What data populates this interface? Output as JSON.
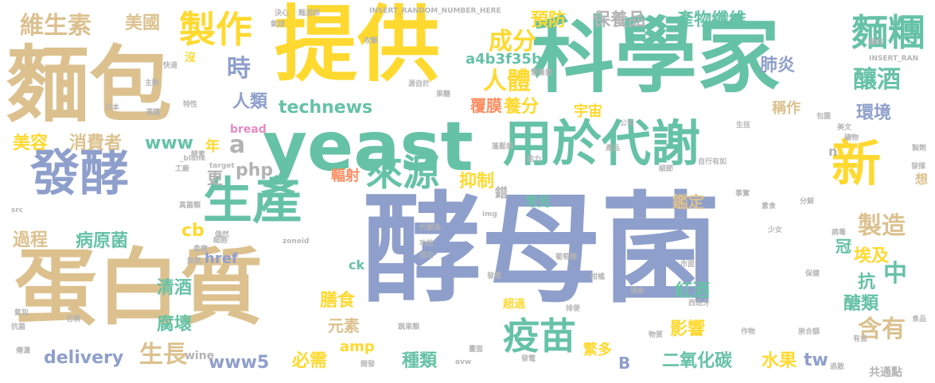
{
  "colors": {
    "blue": "#8f9fcc",
    "tan": "#dcc18f",
    "green": "#66c2a5",
    "yellow": "#ffd92f",
    "orange": "#fc8d62",
    "gray": "#b3b3b3",
    "pink": "#e78ac3",
    "lime": "#a6d854",
    "gold": "#e5c494"
  },
  "words": [
    {
      "text": "酵母菌",
      "color": "#8f9fcc"
    },
    {
      "text": "麵包",
      "color": "#dcc18f"
    },
    {
      "text": "提供",
      "color": "#ffd92f"
    },
    {
      "text": "科學家",
      "color": "#66c2a5"
    },
    {
      "text": "yeast",
      "color": "#66c2a5"
    },
    {
      "text": "用於代謝",
      "color": "#66c2a5"
    },
    {
      "text": "發酵",
      "color": "#8f9fcc"
    },
    {
      "text": "生產",
      "color": "#66c2a5"
    },
    {
      "text": "蛋白質",
      "color": "#dcc18f"
    },
    {
      "text": "新",
      "color": "#ffd92f"
    },
    {
      "text": "麵糰",
      "color": "#66c2a5"
    },
    {
      "text": "釀酒",
      "color": "#66c2a5"
    },
    {
      "text": "製作",
      "color": "#ffd92f"
    },
    {
      "text": "維生素",
      "color": "#dcc18f"
    },
    {
      "text": "美國",
      "color": "#dcc18f"
    },
    {
      "text": "時",
      "color": "#8f9fcc"
    },
    {
      "text": "成分",
      "color": "#ffd92f"
    },
    {
      "text": "人體",
      "color": "#ffd92f"
    },
    {
      "text": "人類",
      "color": "#8f9fcc"
    },
    {
      "text": "technews",
      "color": "#66c2a5"
    },
    {
      "text": "a",
      "color": "#b3b3b3"
    },
    {
      "text": "www",
      "color": "#66c2a5"
    },
    {
      "text": "美容",
      "color": "#ffd92f"
    },
    {
      "text": "消費者",
      "color": "#dcc18f"
    },
    {
      "text": "php",
      "color": "#b3b3b3"
    },
    {
      "text": "更",
      "color": "#b3b3b3"
    },
    {
      "text": "年",
      "color": "#ffd92f"
    },
    {
      "text": "來源",
      "color": "#66c2a5"
    },
    {
      "text": "抑制",
      "color": "#ffd92f"
    },
    {
      "text": "疫苗",
      "color": "#66c2a5"
    },
    {
      "text": "產物纖維",
      "color": "#66c2a5"
    },
    {
      "text": "保養品",
      "color": "#b3b3b3"
    },
    {
      "text": "預防",
      "color": "#ffd92f"
    },
    {
      "text": "a4b3f35b",
      "color": "#66c2a5"
    },
    {
      "text": "肺炎",
      "color": "#8f9fcc"
    },
    {
      "text": "環境",
      "color": "#8f9fcc"
    },
    {
      "text": "養分",
      "color": "#ffd92f"
    },
    {
      "text": "覆膜",
      "color": "#fc8d62"
    },
    {
      "text": "宇宙",
      "color": "#ffd92f"
    },
    {
      "text": "稱作",
      "color": "#dcc18f"
    },
    {
      "text": "製造",
      "color": "#66c2a5"
    },
    {
      "text": "埃及",
      "color": "#ffd92f"
    },
    {
      "text": "冠",
      "color": "#66c2a5"
    },
    {
      "text": "中",
      "color": "#66c2a5"
    },
    {
      "text": "抗",
      "color": "#66c2a5"
    },
    {
      "text": "過程",
      "color": "#dcc18f"
    },
    {
      "text": "病原菌",
      "color": "#66c2a5"
    },
    {
      "text": "cb",
      "color": "#ffd92f"
    },
    {
      "text": "href",
      "color": "#8f9fcc"
    },
    {
      "text": "清酒",
      "color": "#66c2a5"
    },
    {
      "text": "腐壞",
      "color": "#66c2a5"
    },
    {
      "text": "膳食",
      "color": "#ffd92f"
    },
    {
      "text": "元素",
      "color": "#dcc18f"
    },
    {
      "text": "必需",
      "color": "#ffd92f"
    },
    {
      "text": "amp",
      "color": "#ffd92f"
    },
    {
      "text": "種類",
      "color": "#66c2a5"
    },
    {
      "text": "生長",
      "color": "#dcc18f"
    },
    {
      "text": "www5",
      "color": "#8f9fcc"
    },
    {
      "text": "delivery",
      "color": "#8f9fcc"
    },
    {
      "text": "紅酒",
      "color": "#66c2a5"
    },
    {
      "text": "鑑定",
      "color": "#dcc18f"
    },
    {
      "text": "影響",
      "color": "#ffd92f"
    },
    {
      "text": "醣類",
      "color": "#66c2a5"
    },
    {
      "text": "含有",
      "color": "#dcc18f"
    },
    {
      "text": "二氧化碳",
      "color": "#66c2a5"
    },
    {
      "text": "水果",
      "color": "#ffd92f"
    },
    {
      "text": "tw",
      "color": "#8f9fcc"
    },
    {
      "text": "繁多",
      "color": "#ffd92f"
    },
    {
      "text": "B",
      "color": "#8f9fcc"
    },
    {
      "text": "共通點",
      "color": "#b3b3b3"
    },
    {
      "text": "輻射",
      "color": "#fc8d62"
    },
    {
      "text": "bread",
      "color": "#e78ac3"
    },
    {
      "text": "常見",
      "color": "#66c2a5"
    },
    {
      "text": "超過",
      "color": "#ffd92f"
    },
    {
      "text": "wine",
      "color": "#b3b3b3"
    },
    {
      "text": "錯",
      "color": "#b3b3b3"
    },
    {
      "text": "ck",
      "color": "#66c2a5"
    },
    {
      "text": "n",
      "color": "#b3b3b3"
    },
    {
      "text": "想",
      "color": "#dcc18f"
    },
    {
      "text": "沒",
      "color": "#ffd92f"
    },
    {
      "text": "INSERT_RANDOM_NUMBER_HERE",
      "color": "#b3b3b3"
    },
    {
      "text": "INSERT_RAN",
      "color": "#b3b3b3"
    },
    {
      "text": "zoneid",
      "color": "#b3b3b3"
    },
    {
      "text": "img",
      "color": "#b3b3b3"
    },
    {
      "text": "target",
      "color": "#b3b3b3"
    },
    {
      "text": "_blank",
      "color": "#b3b3b3"
    },
    {
      "text": "src",
      "color": "#b3b3b3"
    },
    {
      "text": "avw",
      "color": "#b3b3b3"
    },
    {
      "text": "日本",
      "color": "#b3b3b3"
    },
    {
      "text": "決心",
      "color": "#b3b3b3"
    },
    {
      "text": "氣球",
      "color": "#b3b3b3"
    },
    {
      "text": "麵酒師",
      "color": "#b3b3b3"
    },
    {
      "text": "營養素",
      "color": "#b3b3b3"
    },
    {
      "text": "酵素",
      "color": "#b3b3b3"
    },
    {
      "text": "特性",
      "color": "#b3b3b3"
    },
    {
      "text": "快速",
      "color": "#b3b3b3"
    },
    {
      "text": "主動",
      "color": "#b3b3b3"
    },
    {
      "text": "選購",
      "color": "#b3b3b3"
    },
    {
      "text": "工廠",
      "color": "#b3b3b3"
    },
    {
      "text": "真菌類",
      "color": "#b3b3b3"
    },
    {
      "text": "偶然",
      "color": "#b3b3b3"
    },
    {
      "text": "細胞",
      "color": "#b3b3b3"
    },
    {
      "text": "柔嫩",
      "color": "#b3b3b3"
    },
    {
      "text": "無氧",
      "color": "#b3b3b3"
    },
    {
      "text": "抗菌",
      "color": "#b3b3b3"
    },
    {
      "text": "氣包",
      "color": "#b3b3b3"
    },
    {
      "text": "名稱",
      "color": "#b3b3b3"
    },
    {
      "text": "傳溝",
      "color": "#b3b3b3"
    },
    {
      "text": "代謝為",
      "color": "#b3b3b3"
    },
    {
      "text": "功效",
      "color": "#b3b3b3"
    },
    {
      "text": "成功",
      "color": "#b3b3b3"
    },
    {
      "text": "葡萄糖",
      "color": "#b3b3b3"
    },
    {
      "text": "柑橘",
      "color": "#b3b3b3"
    },
    {
      "text": "排便",
      "color": "#b3b3b3"
    },
    {
      "text": "發電",
      "color": "#b3b3b3"
    },
    {
      "text": "蔬果類",
      "color": "#b3b3b3"
    },
    {
      "text": "開發",
      "color": "#b3b3b3"
    },
    {
      "text": "畫面",
      "color": "#b3b3b3"
    },
    {
      "text": "物質",
      "color": "#b3b3b3"
    },
    {
      "text": "作物",
      "color": "#b3b3b3"
    },
    {
      "text": "崇合額",
      "color": "#b3b3b3"
    },
    {
      "text": "有益",
      "color": "#b3b3b3"
    },
    {
      "text": "食品",
      "color": "#b3b3b3"
    },
    {
      "text": "逃散",
      "color": "#b3b3b3"
    },
    {
      "text": "西班牙",
      "color": "#b3b3b3"
    },
    {
      "text": "少女",
      "color": "#b3b3b3"
    },
    {
      "text": "現象",
      "color": "#b3b3b3"
    },
    {
      "text": "市面",
      "color": "#b3b3b3"
    },
    {
      "text": "保健",
      "color": "#b3b3b3"
    },
    {
      "text": "病毒",
      "color": "#b3b3b3"
    },
    {
      "text": "分解",
      "color": "#b3b3b3"
    },
    {
      "text": "素食",
      "color": "#b3b3b3"
    },
    {
      "text": "事實",
      "color": "#b3b3b3"
    },
    {
      "text": "美文",
      "color": "#b3b3b3"
    },
    {
      "text": "礦物",
      "color": "#b3b3b3"
    },
    {
      "text": "製劑",
      "color": "#b3b3b3"
    },
    {
      "text": "發揮",
      "color": "#b3b3b3"
    },
    {
      "text": "包圍",
      "color": "#b3b3b3"
    },
    {
      "text": "公司",
      "color": "#b3b3b3"
    },
    {
      "text": "生技",
      "color": "#b3b3b3"
    },
    {
      "text": "自行",
      "color": "#b3b3b3"
    },
    {
      "text": "有如",
      "color": "#b3b3b3"
    },
    {
      "text": "細節",
      "color": "#b3b3b3"
    },
    {
      "text": "產品",
      "color": "#b3b3b3"
    },
    {
      "text": "蓬鬆感",
      "color": "#b3b3b3"
    },
    {
      "text": "能力",
      "color": "#b3b3b3"
    },
    {
      "text": "果糖",
      "color": "#b3b3b3"
    },
    {
      "text": "源自於",
      "color": "#b3b3b3"
    },
    {
      "text": "攻擊",
      "color": "#b3b3b3"
    },
    {
      "text": "擁有",
      "color": "#b3b3b3"
    },
    {
      "text": "發電",
      "color": "#b3b3b3"
    }
  ]
}
